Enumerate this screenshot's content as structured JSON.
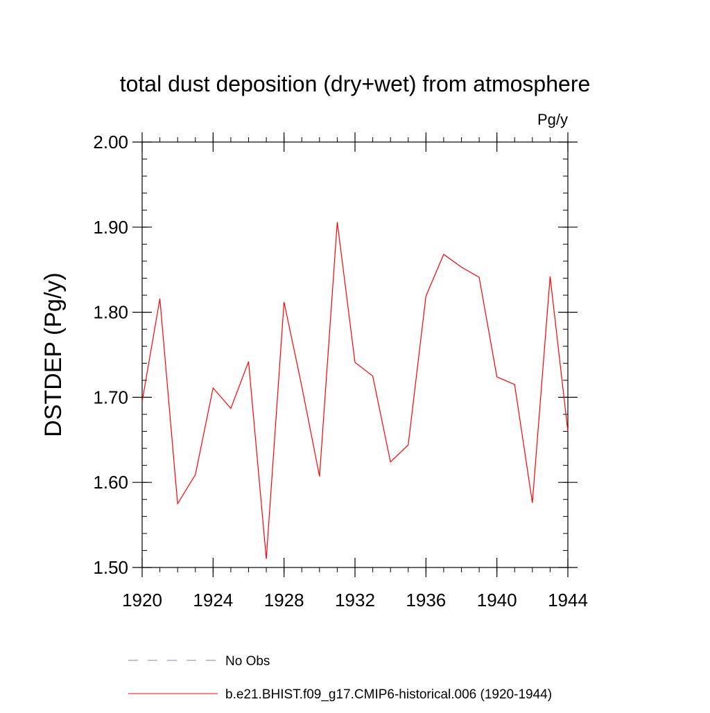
{
  "chart_data": {
    "type": "line",
    "title": "total dust deposition (dry+wet) from atmosphere",
    "units_label": "Pg/y",
    "ylabel": "DSTDEP  (Pg/y)",
    "xlabel": "",
    "xlim": [
      1920,
      1944
    ],
    "ylim": [
      1.5,
      2.0
    ],
    "x_ticks": [
      1920,
      1924,
      1928,
      1932,
      1936,
      1940,
      1944
    ],
    "x_tick_labels": [
      "1920",
      "1924",
      "1928",
      "1932",
      "1936",
      "1940",
      "1944"
    ],
    "x_minor_step": 1,
    "y_ticks": [
      1.5,
      1.6,
      1.7,
      1.8,
      1.9,
      2.0
    ],
    "y_tick_labels": [
      "1.50",
      "1.60",
      "1.70",
      "1.80",
      "1.90",
      "2.00"
    ],
    "y_minor_step": 0.02,
    "grid": false,
    "legend_position": "bottom",
    "x": [
      1920,
      1921,
      1922,
      1923,
      1924,
      1925,
      1926,
      1927,
      1928,
      1929,
      1930,
      1931,
      1932,
      1933,
      1934,
      1935,
      1936,
      1937,
      1938,
      1939,
      1940,
      1941,
      1942,
      1943,
      1944
    ],
    "series": [
      {
        "name": "b.e21.BHIST.f09_g17.CMIP6-historical.006 (1920-1944)",
        "color": "#ff0000",
        "dash": "solid",
        "values": [
          1.695,
          1.816,
          1.575,
          1.609,
          1.711,
          1.687,
          1.742,
          1.51,
          1.812,
          1.713,
          1.607,
          1.906,
          1.741,
          1.725,
          1.624,
          1.644,
          1.819,
          1.868,
          1.853,
          1.841,
          1.724,
          1.715,
          1.576,
          1.842,
          1.66
        ]
      }
    ],
    "legend": [
      {
        "label": "No Obs",
        "color": "#8080c0",
        "dash": "dashed"
      },
      {
        "label": "b.e21.BHIST.f09_g17.CMIP6-historical.006 (1920-1944)",
        "color": "#ff0000",
        "dash": "solid"
      }
    ]
  }
}
